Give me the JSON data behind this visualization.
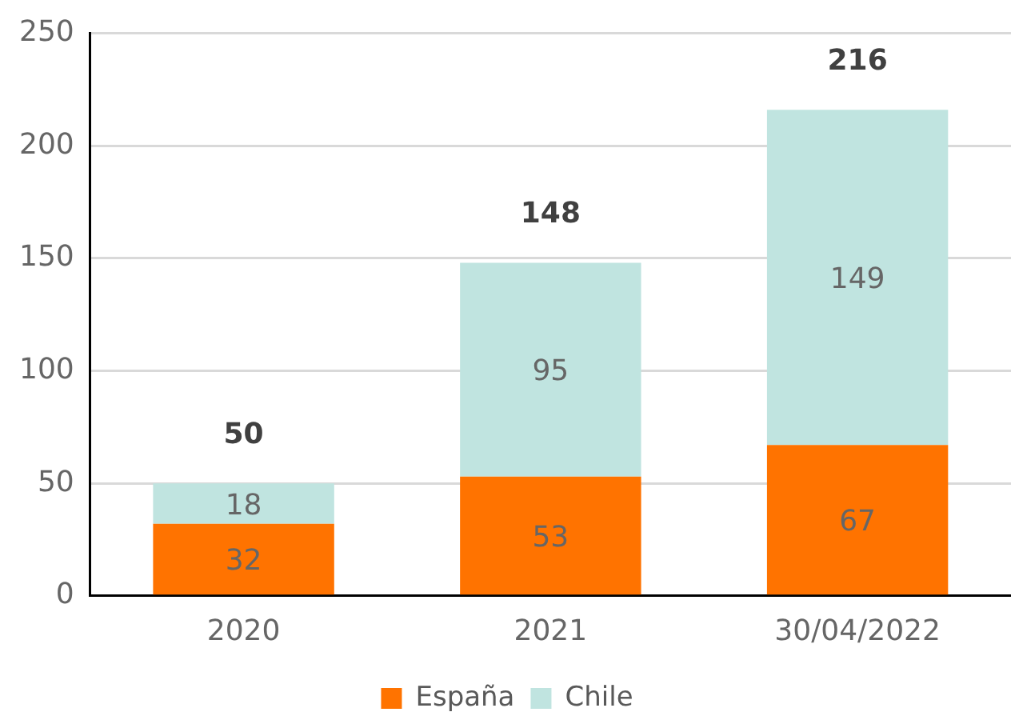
{
  "chart_data": {
    "type": "bar",
    "stacked": true,
    "categories": [
      "2020",
      "2021",
      "30/04/2022"
    ],
    "series": [
      {
        "name": "España",
        "color": "#ff7300",
        "values": [
          32,
          53,
          67
        ]
      },
      {
        "name": "Chile",
        "color": "#c0e4e0",
        "values": [
          18,
          95,
          149
        ]
      }
    ],
    "ylim": [
      0,
      250
    ],
    "yticks": [
      0,
      50,
      100,
      150,
      200,
      250
    ],
    "grid": "y",
    "legend": "bottom",
    "data_labels": true,
    "totals": [
      "50",
      "148",
      "216"
    ]
  }
}
